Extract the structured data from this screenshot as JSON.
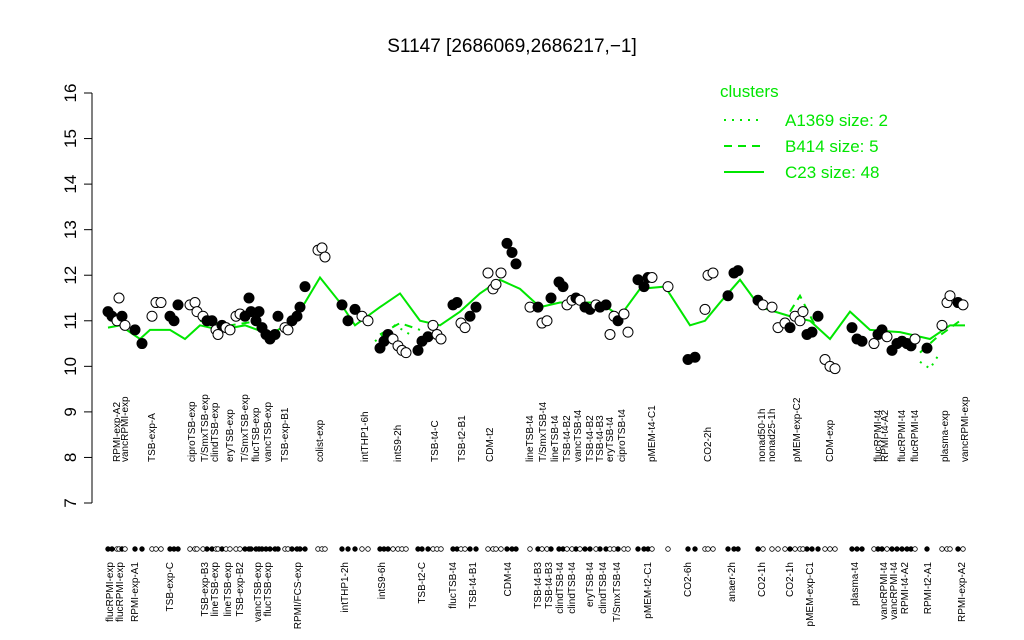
{
  "chart_data": {
    "type": "scatter",
    "title": "S1147 [2686069,2686217,−1]",
    "xlim": [
      92,
      975
    ],
    "ylim": [
      7,
      16
    ],
    "yticks": [
      7,
      8,
      9,
      10,
      11,
      12,
      13,
      14,
      15,
      16
    ],
    "x": [
      108,
      112,
      117,
      119,
      122,
      125,
      135,
      142,
      152,
      156,
      161,
      170,
      174,
      178,
      190,
      195,
      197,
      203,
      207,
      212,
      216,
      218,
      222,
      226,
      230,
      236,
      240,
      245,
      249,
      251,
      256,
      259,
      262,
      266,
      270,
      275,
      278,
      285,
      288,
      292,
      297,
      300,
      305,
      318,
      322,
      325,
      342,
      348,
      355,
      362,
      368,
      380,
      384,
      388,
      393,
      398,
      402,
      406,
      418,
      422,
      428,
      433,
      437,
      441,
      453,
      457,
      461,
      465,
      470,
      476,
      488,
      493,
      496,
      501,
      507,
      512,
      516,
      530,
      538,
      542,
      547,
      551,
      559,
      563,
      567,
      572,
      576,
      580,
      585,
      590,
      596,
      600,
      606,
      610,
      614,
      618,
      624,
      628,
      638,
      644,
      648,
      652,
      668,
      688,
      695,
      705,
      708,
      713,
      728,
      734,
      738,
      758,
      763,
      772,
      778,
      785,
      790,
      795,
      800,
      803,
      807,
      812,
      818,
      825,
      830,
      835,
      852,
      857,
      862,
      874,
      878,
      882,
      887,
      892,
      897,
      902,
      907,
      911,
      915,
      927,
      942,
      947,
      950,
      958,
      963
    ],
    "values": [
      11.2,
      11.1,
      11.0,
      11.5,
      11.1,
      10.9,
      10.8,
      10.5,
      11.1,
      11.4,
      11.4,
      11.1,
      11.0,
      11.35,
      11.35,
      11.4,
      11.2,
      11.1,
      11.0,
      11.0,
      10.8,
      10.7,
      10.9,
      10.85,
      10.8,
      11.1,
      11.15,
      11.1,
      11.5,
      11.2,
      11.0,
      11.2,
      10.85,
      10.7,
      10.6,
      10.7,
      11.1,
      10.85,
      10.8,
      11.0,
      11.1,
      11.3,
      11.75,
      12.55,
      12.6,
      12.4,
      11.35,
      11.0,
      11.25,
      11.1,
      11.0,
      10.4,
      10.55,
      10.7,
      10.6,
      10.45,
      10.35,
      10.3,
      10.35,
      10.55,
      10.65,
      10.9,
      10.7,
      10.6,
      11.35,
      11.4,
      10.95,
      10.85,
      11.1,
      11.3,
      12.05,
      11.7,
      11.8,
      12.05,
      12.7,
      12.5,
      12.25,
      11.3,
      11.3,
      10.95,
      11.0,
      11.5,
      11.85,
      11.75,
      11.35,
      11.45,
      11.5,
      11.45,
      11.3,
      11.25,
      11.35,
      11.3,
      11.35,
      10.7,
      11.1,
      11.0,
      11.15,
      10.75,
      11.9,
      11.75,
      11.95,
      11.95,
      11.75,
      10.15,
      10.2,
      11.25,
      12.0,
      12.05,
      11.55,
      12.05,
      12.1,
      11.45,
      11.35,
      11.3,
      10.85,
      10.95,
      10.85,
      11.1,
      11.0,
      11.2,
      10.7,
      10.75,
      11.1,
      10.15,
      10.0,
      9.95,
      10.85,
      10.6,
      10.55,
      10.5,
      10.7,
      10.8,
      10.65,
      10.35,
      10.5,
      10.55,
      10.5,
      10.45,
      10.6,
      10.4,
      10.9,
      11.4,
      11.55,
      11.4,
      11.35
    ],
    "point_colors": [
      "#000",
      "#000",
      "#fff",
      "#fff",
      "#000",
      "#fff",
      "#000",
      "#000",
      "#fff",
      "#fff",
      "#fff",
      "#000",
      "#000",
      "#000",
      "#fff",
      "#fff",
      "#fff",
      "#fff",
      "#000",
      "#000",
      "#fff",
      "#fff",
      "#000",
      "#fff",
      "#fff",
      "#fff",
      "#fff",
      "#000",
      "#000",
      "#000",
      "#000",
      "#000",
      "#000",
      "#000",
      "#000",
      "#000",
      "#000",
      "#fff",
      "#fff",
      "#000",
      "#000",
      "#000",
      "#000",
      "#fff",
      "#fff",
      "#fff",
      "#000",
      "#000",
      "#000",
      "#fff",
      "#fff",
      "#000",
      "#000",
      "#000",
      "#fff",
      "#fff",
      "#fff",
      "#fff",
      "#000",
      "#000",
      "#000",
      "#fff",
      "#fff",
      "#fff",
      "#000",
      "#000",
      "#fff",
      "#fff",
      "#000",
      "#000",
      "#fff",
      "#fff",
      "#fff",
      "#fff",
      "#000",
      "#000",
      "#000",
      "#fff",
      "#000",
      "#fff",
      "#fff",
      "#000",
      "#000",
      "#000",
      "#fff",
      "#fff",
      "#000",
      "#fff",
      "#000",
      "#000",
      "#fff",
      "#000",
      "#000",
      "#fff",
      "#fff",
      "#000",
      "#fff",
      "#fff",
      "#000",
      "#000",
      "#000",
      "#fff",
      "#fff",
      "#000",
      "#000",
      "#fff",
      "#fff",
      "#fff",
      "#000",
      "#000",
      "#000",
      "#000",
      "#fff",
      "#fff",
      "#fff",
      "#fff",
      "#000",
      "#fff",
      "#fff",
      "#fff",
      "#000",
      "#000",
      "#000",
      "#fff",
      "#fff",
      "#fff",
      "#000",
      "#000",
      "#000",
      "#fff",
      "#000",
      "#000",
      "#fff",
      "#000",
      "#000",
      "#000",
      "#000",
      "#000",
      "#fff",
      "#000",
      "#fff",
      "#fff",
      "#fff",
      "#000",
      "#fff"
    ],
    "legend_title": "clusters",
    "legend": "top-right",
    "series": [
      {
        "name": "A1369 size: 2",
        "color": "#00e600",
        "dash": "2 6",
        "x": [
          375,
          395,
          410,
          null,
          920,
          930,
          940
        ],
        "values": [
          10.55,
          10.9,
          10.7,
          null,
          10.1,
          9.95,
          10.3
        ]
      },
      {
        "name": "B414 size: 5",
        "color": "#00e600",
        "dash": "8 6",
        "x": [
          200,
          230,
          260,
          null,
          380,
          400,
          420,
          null,
          790,
          800,
          815,
          null,
          920,
          935,
          960
        ],
        "values": [
          11.0,
          10.9,
          11.0,
          null,
          10.7,
          10.95,
          10.8,
          null,
          11.2,
          11.55,
          10.9,
          null,
          10.3,
          10.6,
          11.0
        ]
      },
      {
        "name": "C23 size: 48",
        "color": "#00e600",
        "dash": "none",
        "x": [
          108,
          120,
          140,
          150,
          170,
          185,
          200,
          220,
          245,
          270,
          290,
          305,
          320,
          340,
          355,
          380,
          400,
          420,
          440,
          460,
          480,
          500,
          520,
          540,
          560,
          600,
          620,
          640,
          665,
          690,
          705,
          720,
          740,
          760,
          790,
          810,
          830,
          850,
          870,
          900,
          930,
          950,
          965
        ],
        "values": [
          10.85,
          10.9,
          10.6,
          10.8,
          10.8,
          10.6,
          10.9,
          10.8,
          10.9,
          10.7,
          10.95,
          11.4,
          11.95,
          11.4,
          10.9,
          11.3,
          11.6,
          11.0,
          10.9,
          11.2,
          11.6,
          11.9,
          11.7,
          11.3,
          11.4,
          11.4,
          11.1,
          11.7,
          11.75,
          10.9,
          11.0,
          11.4,
          11.9,
          11.3,
          11.1,
          11.0,
          10.6,
          11.2,
          10.8,
          10.75,
          10.6,
          10.9,
          10.9
        ]
      }
    ],
    "top_labels": {
      "x": [
        117,
        125,
        152,
        192,
        205,
        215,
        230,
        245,
        256,
        268,
        285,
        320,
        365,
        398,
        435,
        462,
        490,
        530,
        543,
        555,
        567,
        578,
        590,
        600,
        610,
        622,
        652,
        708,
        762,
        772,
        797,
        830,
        878,
        885,
        902,
        915,
        945,
        965
      ],
      "labels": [
        "RPMI-exp-A2",
        "vancRPMI-exp",
        "TSB-exp-A",
        "ciproTSB-exp",
        "T/SmxTSB-exp",
        "clindTSB-exp",
        "eryTSB-exp",
        "T/SmxTSB-exp",
        "flucTSB-exp",
        "vancTSB-exp",
        "TSB-exp-B1",
        "colist-exp",
        "intTHP1-6h",
        "intS9-2h",
        "TSB-t4-C",
        "TSB-t2-B1",
        "CDM-t2",
        "lineTSB-t4",
        "T/SmxTSB-t4",
        "lineTSB-t4",
        "TSB-t4-B2",
        "vancTSB-t4",
        "TSB-t4-B2",
        "TSB-t4-B3",
        "eryTSB-t4",
        "ciproTSB-t4",
        "pMEM-t4-C1",
        "CO2-2h",
        "nonad50-1h",
        "nonad25-1h",
        "pMEM-exp-C2",
        "CDM-exp",
        "flucRPMI-t4",
        "RPMI-t4-A2",
        "flucRPMI-t4",
        "flucRPMI-t4",
        "plasma-exp",
        "vancRPMI-exp"
      ]
    },
    "bottom_labels": {
      "x": [
        110,
        120,
        135,
        170,
        205,
        215,
        228,
        240,
        258,
        268,
        298,
        345,
        382,
        422,
        453,
        473,
        508,
        538,
        549,
        560,
        572,
        590,
        603,
        617,
        648,
        688,
        732,
        762,
        790,
        810,
        855,
        884,
        894,
        905,
        928,
        962
      ],
      "labels": [
        "flucRPMI-exp",
        "flucRPMI-exp",
        "RPMI-exp-A1",
        "TSB-exp-C",
        "TSB-exp-B3",
        "lineTSB-exp",
        "lineTSB-exp",
        "TSB-exp-B2",
        "vancTSB-exp",
        "flucTSB-exp",
        "RPMI/FCS-exp",
        "intTHP1-2h",
        "intS9-6h",
        "TSB-t2-C",
        "flucTSB-t4",
        "TSB-t4-B1",
        "CDM-t4",
        "TSB-t4-B3",
        "TSB-t4-B3",
        "clindTSB-t4",
        "clindTSB-t4",
        "eryTSB-t4",
        "clindTSB-t4",
        "T/SmxTSB-t4",
        "pMEM-t2-C1",
        "CO2-6h",
        "anaer-2h",
        "CO2-1h",
        "CO2-1h",
        "pMEM-exp-C1",
        "plasma-t4",
        "vancRPMI-t4",
        "vancRPMI-t4",
        "RPMI-t4-A2",
        "RPMI-t2-A1",
        "RPMI-exp-A2"
      ]
    }
  }
}
